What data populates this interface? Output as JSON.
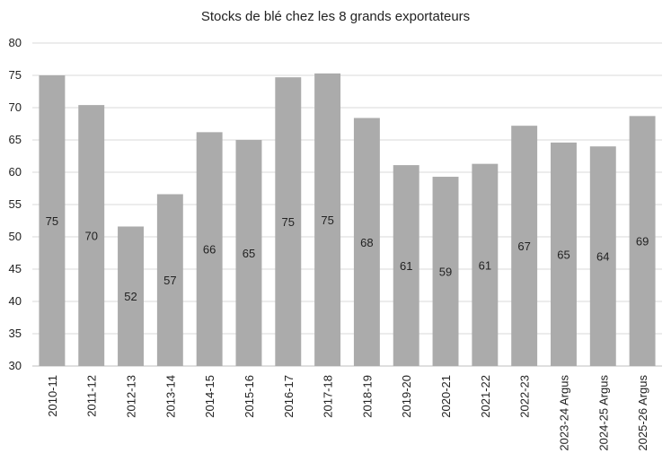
{
  "chart_data": {
    "type": "bar",
    "title": "Stocks de blé chez les 8 grands exportateurs",
    "xlabel": "",
    "ylabel": "",
    "ylim": [
      30,
      80
    ],
    "yticks": [
      30,
      35,
      40,
      45,
      50,
      55,
      60,
      65,
      70,
      75,
      80
    ],
    "ytick_labels": [
      "30",
      "35",
      "40",
      "45",
      "50",
      "55",
      "60",
      "65",
      "70",
      "75",
      "80"
    ],
    "grid": true,
    "legend": "none",
    "categories": [
      "2010-11",
      "2011-12",
      "2012-13",
      "2013-14",
      "2014-15",
      "2015-16",
      "2016-17",
      "2017-18",
      "2018-19",
      "2019-20",
      "2020-21",
      "2021-22",
      "2022-23",
      "2023-24 Argus",
      "2024-25 Argus",
      "2025-26 Argus"
    ],
    "values": [
      75,
      70.4,
      51.6,
      56.6,
      66.2,
      65,
      74.7,
      75.3,
      68.4,
      61.1,
      59.3,
      61.3,
      67.2,
      64.6,
      64,
      68.7
    ],
    "data_labels": [
      "75",
      "70",
      "52",
      "57",
      "66",
      "65",
      "75",
      "75",
      "68",
      "61",
      "59",
      "61",
      "67",
      "65",
      "64",
      "69"
    ],
    "colors": {
      "bar": "#ababab",
      "grid": "#d9d9d9",
      "text": "#222222",
      "axis": "#bfbfbf"
    }
  }
}
